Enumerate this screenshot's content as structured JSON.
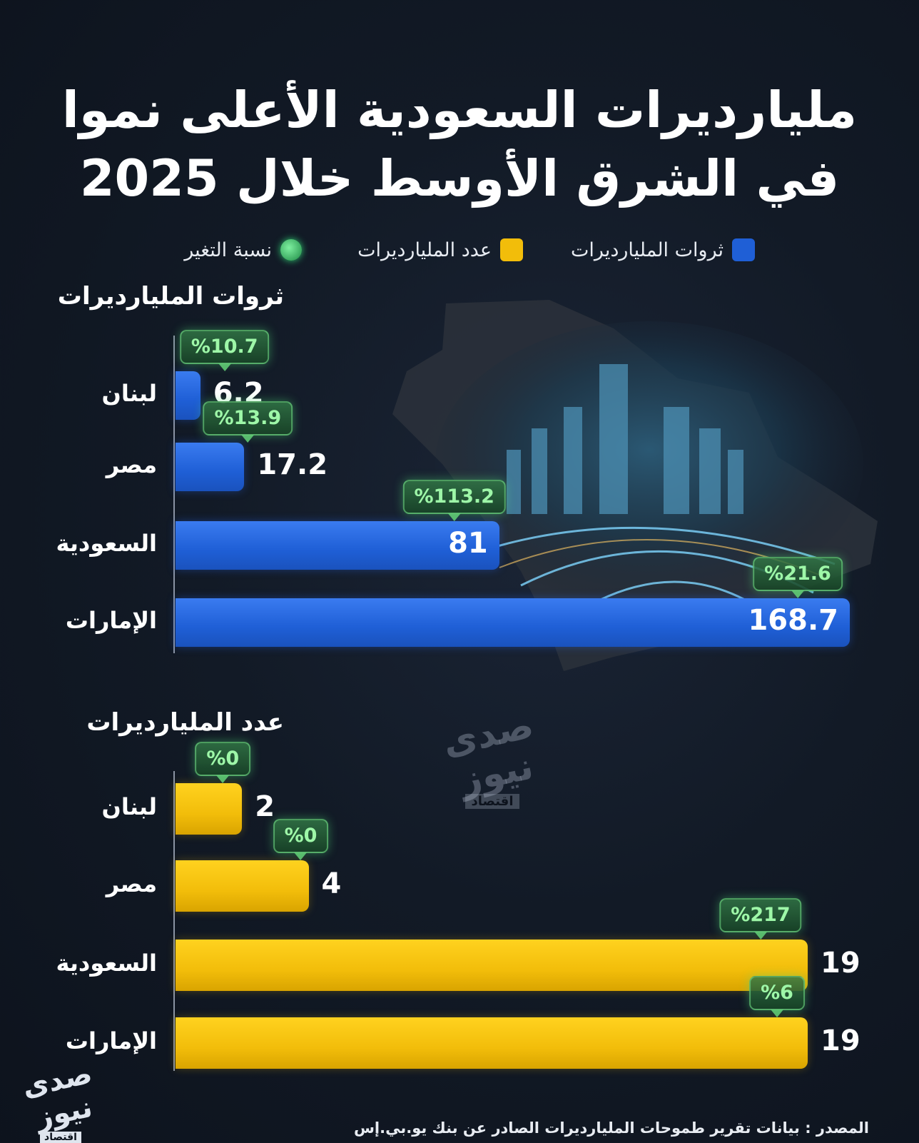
{
  "title_line1": "ملياردیرات السعودية الأعلى نموا",
  "title_line2": "في الشرق الأوسط خلال 2025",
  "legend": [
    {
      "label": "ثروات المليارديرات",
      "color": "#1f5fd6",
      "shape": "square"
    },
    {
      "label": "عدد المليارديرات",
      "color": "#f2bd0a",
      "shape": "square"
    },
    {
      "label": "نسبة التغير",
      "color": "#2ecc71",
      "shape": "circle"
    }
  ],
  "source_text": "المصدر : بيانات تقرير طموحات المليارديرات الصادر عن بنك يو.بي.إس",
  "watermark": {
    "main": "صدى نيوز",
    "sub": "اقتصاد"
  },
  "colors": {
    "background": "#121a26",
    "wealth_bar": "#1f5fd6",
    "count_bar": "#f2bd0a",
    "change_badge": "#9ef7a8"
  },
  "chart_data": [
    {
      "type": "bar",
      "orientation": "horizontal",
      "title": "ثروات المليارديرات",
      "categories": [
        "لبنان",
        "مصر",
        "السعودية",
        "الإمارات"
      ],
      "values": [
        6.2,
        17.2,
        81,
        168.7
      ],
      "value_labels": [
        "6.2",
        "17.2",
        "81",
        "168.7"
      ],
      "change_labels": [
        "%10.7",
        "%13.9",
        "%113.2",
        "%21.6"
      ],
      "change_values": [
        10.7,
        13.9,
        113.2,
        21.6
      ],
      "xlim": [
        0,
        168.7
      ]
    },
    {
      "type": "bar",
      "orientation": "horizontal",
      "title": "عدد المليارديرات",
      "categories": [
        "لبنان",
        "مصر",
        "السعودية",
        "الإمارات"
      ],
      "values": [
        2,
        4,
        19,
        19
      ],
      "value_labels": [
        "2",
        "4",
        "19",
        "19"
      ],
      "change_labels": [
        "%0",
        "%0",
        "%217",
        "%6"
      ],
      "change_values": [
        0,
        0,
        217,
        6
      ],
      "xlim": [
        0,
        19
      ]
    }
  ]
}
